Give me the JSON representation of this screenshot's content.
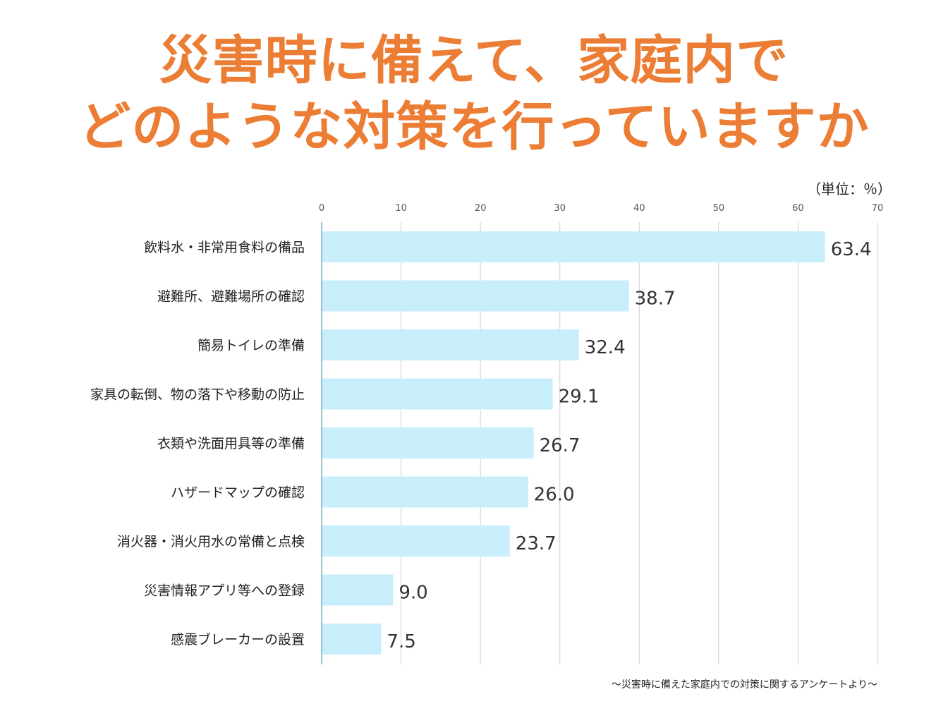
{
  "title_line1": "災害時に備えて、家庭内で",
  "title_line2": "どのような対策を行っていますか",
  "unit_label": "（単位：％）",
  "source": "～災害時に備えた家庭内での対策に関するアンケートより～",
  "colors": {
    "title": "#ec7d35",
    "bar": "#c9eefb",
    "grid": "#d0d0d0",
    "axis": "#7aaec4"
  },
  "chart_data": {
    "type": "bar",
    "orientation": "horizontal",
    "categories": [
      "飲料水・非常用食料の備品",
      "避難所、避難場所の確認",
      "簡易トイレの準備",
      "家具の転倒、物の落下や移動の防止",
      "衣類や洗面用具等の準備",
      "ハザードマップの確認",
      "消火器・消火用水の常備と点検",
      "災害情報アプリ等への登録",
      "感震ブレーカーの設置"
    ],
    "values": [
      63.4,
      38.7,
      32.4,
      29.1,
      26.7,
      26.0,
      23.7,
      9.0,
      7.5
    ],
    "value_labels": [
      "63.4",
      "38.7",
      "32.4",
      "29.1",
      "26.7",
      "26.0",
      "23.7",
      "9.0",
      "7.5"
    ],
    "xlim": [
      0,
      70
    ],
    "ticks": [
      0,
      10,
      20,
      30,
      40,
      50,
      60,
      70
    ],
    "tick_position": "top",
    "grid": true
  }
}
